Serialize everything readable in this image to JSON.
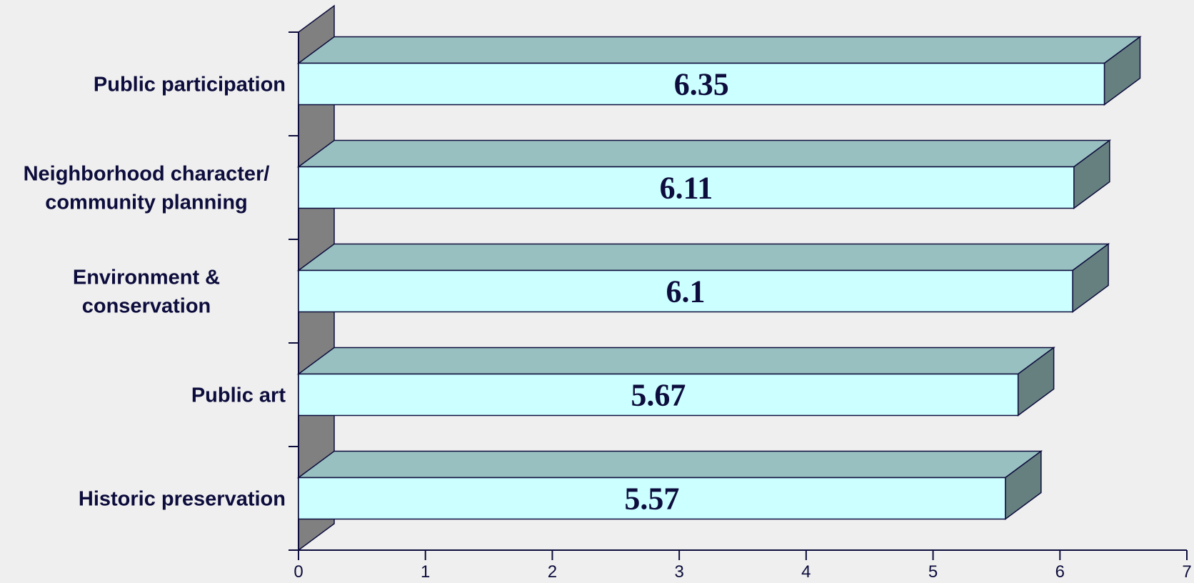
{
  "chart_data": {
    "type": "bar",
    "orientation": "horizontal",
    "style": "3d",
    "categories": [
      "Public participation",
      "Neighborhood character/ community planning",
      "Environment & conservation",
      "Public art",
      "Historic preservation"
    ],
    "category_lines": [
      [
        "Public participation"
      ],
      [
        "Neighborhood character/",
        "community planning"
      ],
      [
        "Environment &",
        "conservation"
      ],
      [
        "Public art"
      ],
      [
        "Historic preservation"
      ]
    ],
    "values": [
      6.35,
      6.11,
      6.1,
      5.67,
      5.57
    ],
    "value_labels": [
      "6.35",
      "6.11",
      "6.1",
      "5.67",
      "5.57"
    ],
    "xlim": [
      0,
      7
    ],
    "xticks": [
      0,
      1,
      2,
      3,
      4,
      5,
      6,
      7
    ],
    "title": "",
    "xlabel": "",
    "ylabel": "",
    "grid": false,
    "legend": "none",
    "colors": {
      "bar_front": "#ccffff",
      "bar_top": "#99c0c0",
      "bar_side": "#668080",
      "wall": "#808080",
      "outline": "#0d0d3d",
      "background": "#efefef"
    }
  }
}
